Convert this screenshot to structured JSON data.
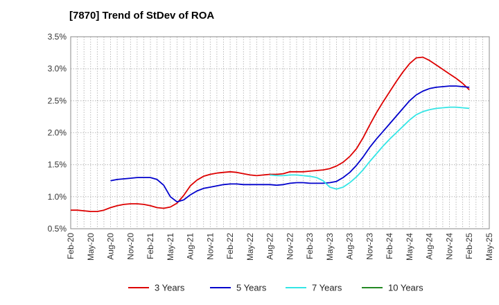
{
  "chart_data": {
    "type": "line",
    "title": "[7870]  Trend of StDev of ROA",
    "x_tick_labels": [
      "Feb-20",
      "May-20",
      "Aug-20",
      "Nov-20",
      "Feb-21",
      "May-21",
      "Aug-21",
      "Nov-21",
      "Feb-22",
      "May-22",
      "Aug-22",
      "Nov-22",
      "Feb-23",
      "May-23",
      "Aug-23",
      "Nov-23",
      "Feb-24",
      "May-24",
      "Aug-24",
      "Nov-24",
      "Feb-25",
      "May-25"
    ],
    "y_tick_labels": [
      "0.5%",
      "1.0%",
      "1.5%",
      "2.0%",
      "2.5%",
      "3.0%",
      "3.5%"
    ],
    "y_ticks": [
      0.5,
      1.0,
      1.5,
      2.0,
      2.5,
      3.0,
      3.5
    ],
    "ylim": [
      0.5,
      3.5
    ],
    "grid": true,
    "legend_position": "bottom",
    "series": [
      {
        "name": "3 Years",
        "color": "#dd0000",
        "x": [
          "Feb-20",
          "Mar-20",
          "Apr-20",
          "May-20",
          "Jun-20",
          "Jul-20",
          "Aug-20",
          "Sep-20",
          "Oct-20",
          "Nov-20",
          "Dec-20",
          "Jan-21",
          "Feb-21",
          "Mar-21",
          "Apr-21",
          "May-21",
          "Jun-21",
          "Jul-21",
          "Aug-21",
          "Sep-21",
          "Oct-21",
          "Nov-21",
          "Dec-21",
          "Jan-22",
          "Feb-22",
          "Mar-22",
          "Apr-22",
          "May-22",
          "Jun-22",
          "Jul-22",
          "Aug-22",
          "Sep-22",
          "Oct-22",
          "Nov-22",
          "Dec-22",
          "Jan-23",
          "Feb-23",
          "Mar-23",
          "Apr-23",
          "May-23",
          "Jun-23",
          "Jul-23",
          "Aug-23",
          "Sep-23",
          "Oct-23",
          "Nov-23",
          "Dec-23",
          "Jan-24",
          "Feb-24",
          "Mar-24",
          "Apr-24",
          "May-24",
          "Jun-24",
          "Jul-24",
          "Aug-24",
          "Sep-24",
          "Oct-24",
          "Nov-24",
          "Dec-24",
          "Jan-25",
          "Feb-25"
        ],
        "values": [
          0.79,
          0.79,
          0.78,
          0.77,
          0.77,
          0.79,
          0.83,
          0.86,
          0.88,
          0.89,
          0.89,
          0.88,
          0.86,
          0.83,
          0.82,
          0.84,
          0.9,
          1.02,
          1.17,
          1.26,
          1.32,
          1.35,
          1.37,
          1.38,
          1.39,
          1.38,
          1.36,
          1.34,
          1.33,
          1.34,
          1.35,
          1.35,
          1.36,
          1.39,
          1.39,
          1.39,
          1.4,
          1.41,
          1.42,
          1.44,
          1.48,
          1.54,
          1.63,
          1.75,
          1.92,
          2.12,
          2.31,
          2.48,
          2.64,
          2.8,
          2.95,
          3.08,
          3.17,
          3.18,
          3.13,
          3.06,
          2.99,
          2.92,
          2.85,
          2.77,
          2.67
        ]
      },
      {
        "name": "5 Years",
        "color": "#0000cc",
        "x": [
          "Aug-20",
          "Sep-20",
          "Oct-20",
          "Nov-20",
          "Dec-20",
          "Jan-21",
          "Feb-21",
          "Mar-21",
          "Apr-21",
          "May-21",
          "Jun-21",
          "Jul-21",
          "Aug-21",
          "Sep-21",
          "Oct-21",
          "Nov-21",
          "Dec-21",
          "Jan-22",
          "Feb-22",
          "Mar-22",
          "Apr-22",
          "May-22",
          "Jun-22",
          "Jul-22",
          "Aug-22",
          "Sep-22",
          "Oct-22",
          "Nov-22",
          "Dec-22",
          "Jan-23",
          "Feb-23",
          "Mar-23",
          "Apr-23",
          "May-23",
          "Jun-23",
          "Jul-23",
          "Aug-23",
          "Sep-23",
          "Oct-23",
          "Nov-23",
          "Dec-23",
          "Jan-24",
          "Feb-24",
          "Mar-24",
          "Apr-24",
          "May-24",
          "Jun-24",
          "Jul-24",
          "Aug-24",
          "Sep-24",
          "Oct-24",
          "Nov-24",
          "Dec-24",
          "Jan-25",
          "Feb-25"
        ],
        "values": [
          1.25,
          1.27,
          1.28,
          1.29,
          1.3,
          1.3,
          1.3,
          1.27,
          1.18,
          1.0,
          0.92,
          0.95,
          1.03,
          1.09,
          1.13,
          1.15,
          1.17,
          1.19,
          1.2,
          1.2,
          1.19,
          1.19,
          1.19,
          1.19,
          1.19,
          1.18,
          1.19,
          1.21,
          1.22,
          1.22,
          1.21,
          1.21,
          1.21,
          1.22,
          1.24,
          1.3,
          1.38,
          1.49,
          1.62,
          1.77,
          1.9,
          2.02,
          2.14,
          2.26,
          2.38,
          2.5,
          2.59,
          2.65,
          2.69,
          2.71,
          2.72,
          2.73,
          2.73,
          2.72,
          2.71
        ]
      },
      {
        "name": "7 Years",
        "color": "#33e5e5",
        "x": [
          "Aug-22",
          "Sep-22",
          "Oct-22",
          "Nov-22",
          "Dec-22",
          "Jan-23",
          "Feb-23",
          "Mar-23",
          "Apr-23",
          "May-23",
          "Jun-23",
          "Jul-23",
          "Aug-23",
          "Sep-23",
          "Oct-23",
          "Nov-23",
          "Dec-23",
          "Jan-24",
          "Feb-24",
          "Mar-24",
          "Apr-24",
          "May-24",
          "Jun-24",
          "Jul-24",
          "Aug-24",
          "Sep-24",
          "Oct-24",
          "Nov-24",
          "Dec-24",
          "Jan-25",
          "Feb-25"
        ],
        "values": [
          1.34,
          1.33,
          1.33,
          1.34,
          1.34,
          1.33,
          1.32,
          1.3,
          1.25,
          1.15,
          1.12,
          1.15,
          1.22,
          1.31,
          1.42,
          1.55,
          1.67,
          1.79,
          1.9,
          2.0,
          2.1,
          2.2,
          2.28,
          2.33,
          2.36,
          2.38,
          2.39,
          2.4,
          2.4,
          2.39,
          2.38
        ]
      },
      {
        "name": "10 Years",
        "color": "#228822",
        "x": [],
        "values": []
      }
    ]
  }
}
